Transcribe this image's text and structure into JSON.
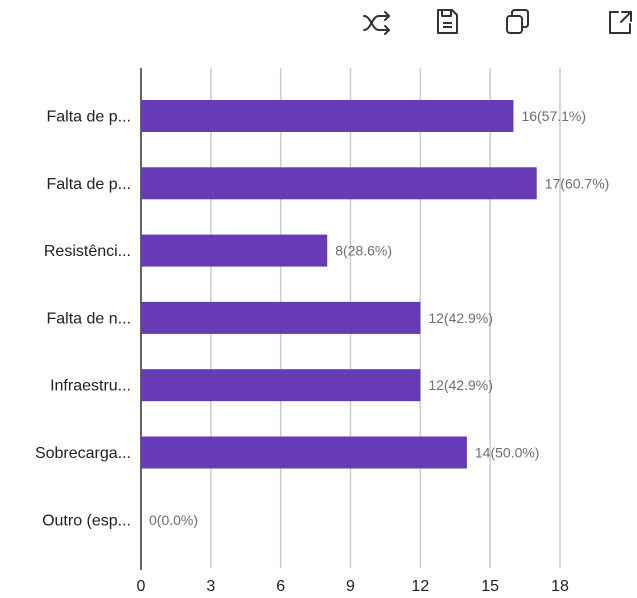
{
  "toolbar": {
    "icons": [
      "shuffle-icon",
      "save-icon",
      "copy-icon",
      "expand-icon"
    ]
  },
  "colors": {
    "bar": "#673ab7",
    "grid": "#cccccc",
    "axis": "#333333",
    "value_label": "#6f6f6f",
    "text": "#222222",
    "icon": "#333333"
  },
  "chart_data": {
    "type": "bar",
    "orientation": "horizontal",
    "categories": [
      "Falta de p...",
      "Falta de p...",
      "Resistênci...",
      "Falta de n...",
      "Infraestru...",
      "Sobrecarga...",
      "Outro (esp..."
    ],
    "values": [
      16,
      17,
      8,
      12,
      12,
      14,
      0
    ],
    "value_labels": [
      "16(57.1%)",
      "17(60.7%)",
      "8(28.6%)",
      "12(42.9%)",
      "12(42.9%)",
      "14(50.0%)",
      "0(0.0%)"
    ],
    "xticks": [
      0,
      3,
      6,
      9,
      12,
      15,
      18
    ],
    "xlim": [
      0,
      18
    ],
    "grid": true,
    "legend": "none"
  }
}
